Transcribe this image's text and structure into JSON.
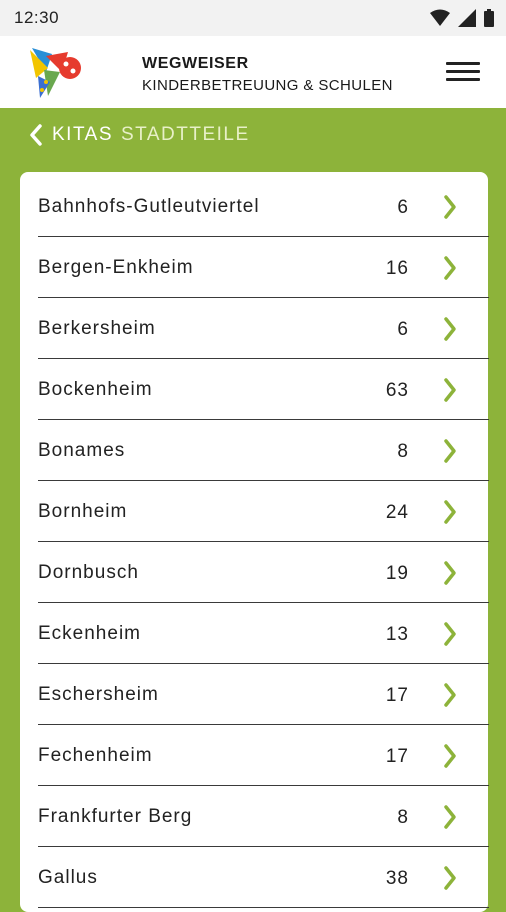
{
  "status_bar": {
    "time": "12:30"
  },
  "header": {
    "title": "WEGWEISER",
    "subtitle": "KINDERBETREUUNG & SCHULEN"
  },
  "breadcrumb": {
    "parent": "KITAS",
    "current": "STADTTEILE"
  },
  "colors": {
    "accent_green": "#8db33a",
    "chevron_green": "#8db33a",
    "card_bg": "#ffffff",
    "header_bg": "#ffffff"
  },
  "districts": [
    {
      "name": "Bahnhofs-Gutleutviertel",
      "count": "6"
    },
    {
      "name": "Bergen-Enkheim",
      "count": "16"
    },
    {
      "name": "Berkersheim",
      "count": "6"
    },
    {
      "name": "Bockenheim",
      "count": "63"
    },
    {
      "name": "Bonames",
      "count": "8"
    },
    {
      "name": "Bornheim",
      "count": "24"
    },
    {
      "name": "Dornbusch",
      "count": "19"
    },
    {
      "name": "Eckenheim",
      "count": "13"
    },
    {
      "name": "Eschersheim",
      "count": "17"
    },
    {
      "name": "Fechenheim",
      "count": "17"
    },
    {
      "name": "Frankfurter Berg",
      "count": "8"
    },
    {
      "name": "Gallus",
      "count": "38"
    }
  ]
}
